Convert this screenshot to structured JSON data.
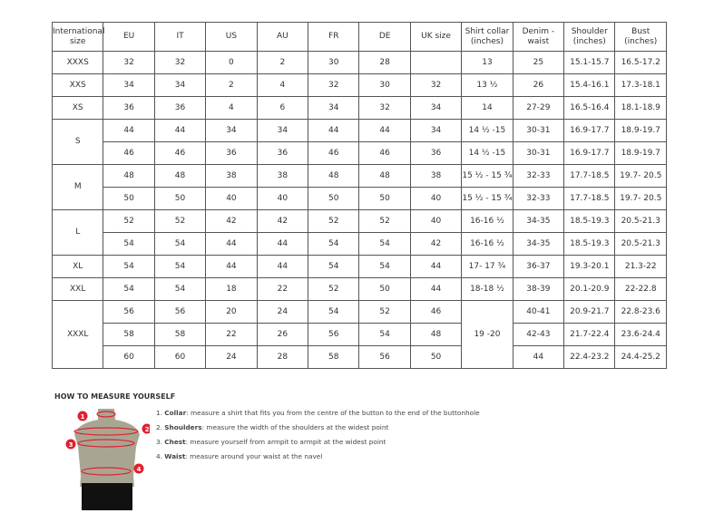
{
  "headers": [
    "International size",
    "EU",
    "IT",
    "US",
    "AU",
    "FR",
    "DE",
    "UK size",
    "Shirt collar (inches)",
    "Denim - waist",
    "Shoulder (inches)",
    "Bust (inches)"
  ],
  "groups": [
    {
      "size": "XXXS",
      "rows": [
        [
          "32",
          "32",
          "0",
          "2",
          "30",
          "28",
          "",
          "13",
          "25",
          "15.1-15.7",
          "16.5-17.2"
        ]
      ]
    },
    {
      "size": "XXS",
      "rows": [
        [
          "34",
          "34",
          "2",
          "4",
          "32",
          "30",
          "32",
          "13 ½",
          "26",
          "15.4-16.1",
          "17.3-18.1"
        ]
      ]
    },
    {
      "size": "XS",
      "rows": [
        [
          "36",
          "36",
          "4",
          "6",
          "34",
          "32",
          "34",
          "14",
          "27-29",
          "16.5-16.4",
          "18.1-18.9"
        ]
      ]
    },
    {
      "size": "S",
      "rows": [
        [
          "44",
          "44",
          "34",
          "34",
          "44",
          "44",
          "34",
          "14 ½ -15",
          "30-31",
          "16.9-17.7",
          "18.9-19.7"
        ],
        [
          "46",
          "46",
          "36",
          "36",
          "46",
          "46",
          "36",
          "14 ½ -15",
          "30-31",
          "16.9-17.7",
          "18.9-19.7"
        ]
      ]
    },
    {
      "size": "M",
      "rows": [
        [
          "48",
          "48",
          "38",
          "38",
          "48",
          "48",
          "38",
          "15 ½ - 15 ¾",
          "32-33",
          "17.7-18.5",
          "19.7- 20.5"
        ],
        [
          "50",
          "50",
          "40",
          "40",
          "50",
          "50",
          "40",
          "15 ½ - 15 ¾",
          "32-33",
          "17.7-18.5",
          "19.7- 20.5"
        ]
      ]
    },
    {
      "size": "L",
      "rows": [
        [
          "52",
          "52",
          "42",
          "42",
          "52",
          "52",
          "40",
          "16-16 ½",
          "34-35",
          "18.5-19.3",
          "20.5-21.3"
        ],
        [
          "54",
          "54",
          "44",
          "44",
          "54",
          "54",
          "42",
          "16-16 ½",
          "34-35",
          "18.5-19.3",
          "20.5-21.3"
        ]
      ]
    },
    {
      "size": "XL",
      "rows": [
        [
          "54",
          "54",
          "44",
          "44",
          "54",
          "54",
          "44",
          "17- 17 ¾",
          "36-37",
          "19.3-20.1",
          "21.3-22"
        ]
      ]
    },
    {
      "size": "XXL",
      "rows": [
        [
          "54",
          "54",
          "18",
          "22",
          "52",
          "50",
          "44",
          "18-18 ½",
          "38-39",
          "20.1-20.9",
          "22-22.8"
        ]
      ]
    },
    {
      "size": "XXXL",
      "collar": "19 -20",
      "rows": [
        [
          "56",
          "56",
          "20",
          "24",
          "54",
          "52",
          "46",
          null,
          "40-41",
          "20.9-21.7",
          "22.8-23.6"
        ],
        [
          "58",
          "58",
          "22",
          "26",
          "56",
          "54",
          "48",
          null,
          "42-43",
          "21.7-22.4",
          "23.6-24.4"
        ],
        [
          "60",
          "60",
          "24",
          "28",
          "58",
          "56",
          "50",
          null,
          "44",
          "22.4-23.2",
          "24.4-25.2"
        ]
      ]
    }
  ],
  "guide": {
    "title": "HOW TO MEASURE YOURSELF",
    "steps": [
      {
        "num": "1.",
        "term": "Collar",
        "text": ": measure a shirt that fits you from the centre of the button to the end of the buttonhole"
      },
      {
        "num": "2.",
        "term": "Shoulders",
        "text": ": measure the width of the shoulders at the widest point"
      },
      {
        "num": "3.",
        "term": "Chest",
        "text": ": measure yourself from armpit to armpit at the widest point"
      },
      {
        "num": "4.",
        "term": "Waist",
        "text": ": measure around your waist at the navel"
      }
    ],
    "markers": [
      "1",
      "2",
      "3",
      "4"
    ],
    "marker_color": "#e0202e",
    "body_color": "#a8a692"
  }
}
